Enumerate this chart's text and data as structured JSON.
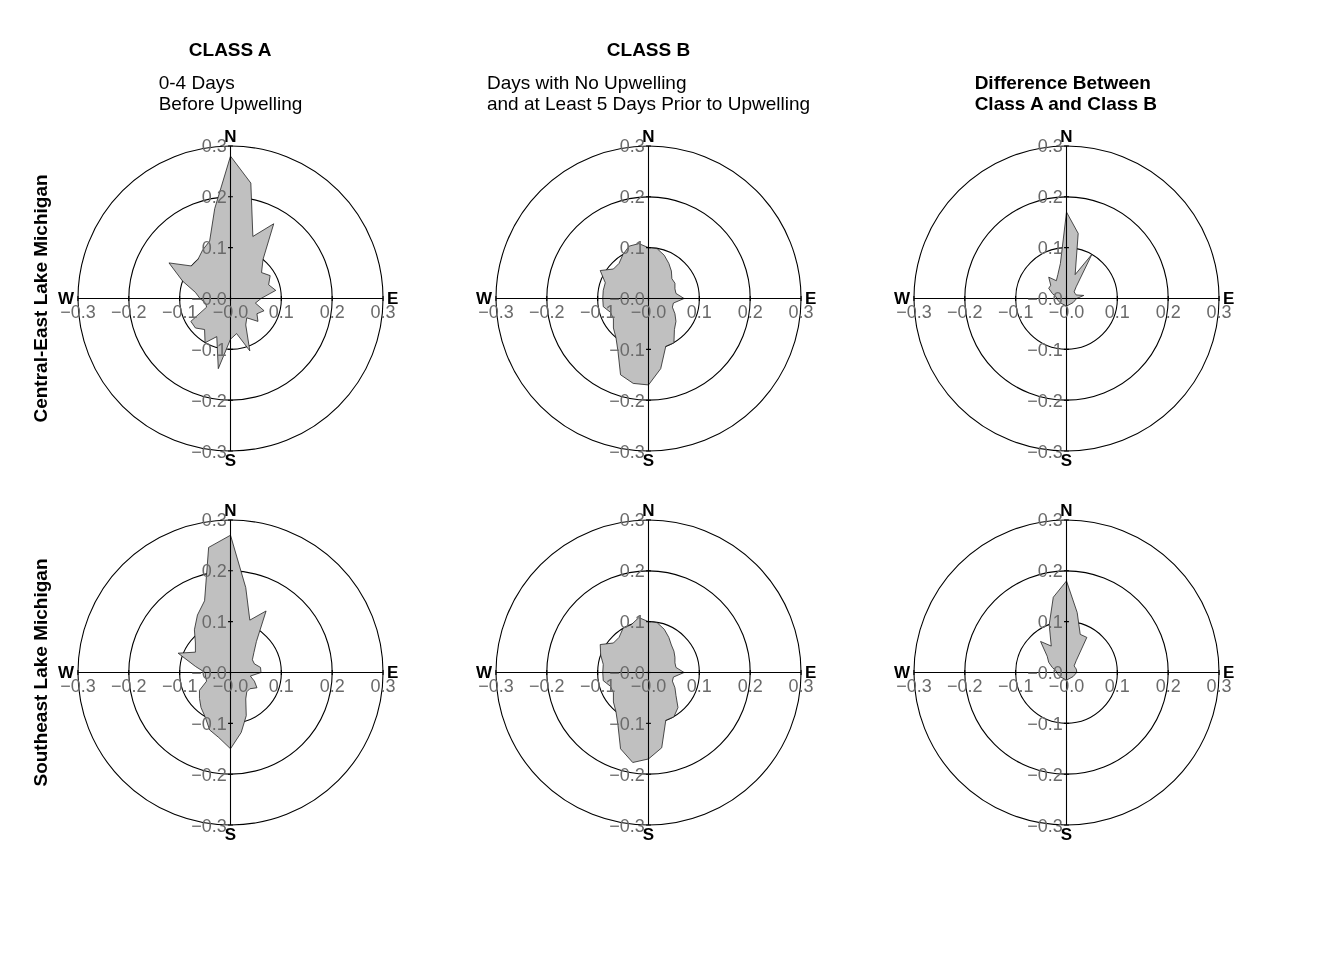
{
  "chart_data": [
    {
      "type": "area",
      "title": "CLASS A",
      "subtitle": "0-4 Days\nBefore Upwelling",
      "ylabel": "Central-East Lake Michigan",
      "xlim": [
        -0.3,
        0.3
      ],
      "ylim": [
        -0.3,
        0.3
      ],
      "xticks": [
        {
          "value": -0.3,
          "label": "−0.3"
        },
        {
          "value": -0.2,
          "label": "−0.2"
        },
        {
          "value": -0.1,
          "label": "−0.1"
        },
        {
          "value": 0,
          "label": "−0.0"
        },
        0.1,
        0.2,
        0.3
      ],
      "yticks": [
        {
          "value": -0.3,
          "label": "−0.3"
        },
        {
          "value": -0.2,
          "label": "−0.2"
        },
        {
          "value": -0.1,
          "label": "−0.1"
        },
        {
          "value": 0,
          "label": "−0.0"
        },
        0.1,
        0.2,
        0.3
      ],
      "annotations": [
        "N",
        "E",
        "S",
        "W"
      ],
      "series": [
        {
          "color": "#c0c0c0",
          "x": [
            0,
            0.04,
            0.044,
            0.085,
            0.064,
            0.061,
            0.078,
            0.075,
            0.089,
            0.06,
            0.049,
            0.066,
            0.052,
            0.054,
            0.032,
            0.03,
            0.038,
            0.012,
            0,
            -0.024,
            -0.027,
            -0.05,
            -0.051,
            -0.069,
            -0.078,
            -0.047,
            -0.049,
            -0.06,
            -0.069,
            -0.094,
            -0.121,
            -0.077,
            -0.064,
            -0.055,
            -0.041,
            -0.031
          ],
          "values": [
            0.28,
            0.227,
            0.122,
            0.147,
            0.077,
            0.051,
            0.045,
            0.027,
            0.016,
            0,
            -0.009,
            -0.024,
            -0.03,
            -0.045,
            -0.038,
            -0.052,
            -0.103,
            -0.069,
            -0.08,
            -0.138,
            -0.075,
            -0.087,
            -0.061,
            -0.058,
            -0.045,
            -0.017,
            -0.009,
            0,
            0.012,
            0.034,
            0.07,
            0.064,
            0.077,
            0.095,
            0.113,
            0.177
          ]
        }
      ]
    },
    {
      "type": "area",
      "title": "CLASS B",
      "subtitle": "Days with No Upwelling\nand at Least 5 Days Prior to Upwelling",
      "xlim": [
        -0.3,
        0.3
      ],
      "ylim": [
        -0.3,
        0.3
      ],
      "xticks": [
        {
          "value": -0.3,
          "label": "−0.3"
        },
        {
          "value": -0.2,
          "label": "−0.2"
        },
        {
          "value": -0.1,
          "label": "−0.1"
        },
        {
          "value": 0,
          "label": "−0.0"
        },
        0.1,
        0.2,
        0.3
      ],
      "yticks": [
        {
          "value": -0.3,
          "label": "−0.3"
        },
        {
          "value": -0.2,
          "label": "−0.2"
        },
        {
          "value": -0.1,
          "label": "−0.1"
        },
        {
          "value": 0,
          "label": "−0.0"
        },
        0.1,
        0.2,
        0.3
      ],
      "annotations": [
        "N",
        "E",
        "S",
        "W"
      ],
      "series": [
        {
          "color": "#c0c0c0",
          "x": [
            0,
            0.017,
            0.031,
            0.04,
            0.045,
            0.046,
            0.052,
            0.052,
            0.054,
            0.07,
            0.049,
            0.047,
            0.052,
            0.054,
            0.051,
            0.05,
            0.034,
            0.024,
            0,
            -0.03,
            -0.055,
            -0.06,
            -0.064,
            -0.069,
            -0.069,
            -0.075,
            -0.089,
            -0.09,
            -0.089,
            -0.085,
            -0.095,
            -0.069,
            -0.058,
            -0.05,
            -0.038,
            -0.019
          ],
          "values": [
            0.1,
            0.098,
            0.085,
            0.069,
            0.054,
            0.039,
            0.03,
            0.019,
            0.01,
            0,
            -0.009,
            -0.017,
            -0.03,
            -0.045,
            -0.061,
            -0.087,
            -0.094,
            -0.138,
            -0.17,
            -0.167,
            -0.15,
            -0.104,
            -0.077,
            -0.058,
            -0.04,
            -0.027,
            -0.016,
            0,
            0.016,
            0.031,
            0.055,
            0.058,
            0.069,
            0.087,
            0.103,
            0.108
          ]
        }
      ]
    },
    {
      "type": "area",
      "title": "Difference Between\nClass A and Class B",
      "xlim": [
        -0.3,
        0.3
      ],
      "ylim": [
        -0.3,
        0.3
      ],
      "xticks": [
        {
          "value": -0.3,
          "label": "−0.3"
        },
        {
          "value": -0.2,
          "label": "−0.2"
        },
        {
          "value": -0.1,
          "label": "−0.1"
        },
        {
          "value": 0,
          "label": "−0.0"
        },
        0.1,
        0.2,
        0.3
      ],
      "yticks": [
        {
          "value": -0.3,
          "label": "−0.3"
        },
        {
          "value": -0.2,
          "label": "−0.2"
        },
        {
          "value": -0.1,
          "label": "−0.1"
        },
        {
          "value": 0,
          "label": "−0.0"
        },
        0.1,
        0.2,
        0.3
      ],
      "annotations": [
        "N",
        "E",
        "S",
        "W"
      ],
      "series": [
        {
          "color": "#c0c0c0",
          "x": [
            0,
            0.023,
            0.017,
            0.05,
            0.019,
            0.015,
            0.017,
            0.019,
            0.034,
            0.02,
            0.013,
            0,
            -0.013,
            -0.02,
            -0.02,
            -0.028,
            -0.035,
            -0.031,
            -0.035,
            -0.02,
            -0.017,
            -0.012
          ],
          "values": [
            0.17,
            0.128,
            0.047,
            0.087,
            0.023,
            0.013,
            0.01,
            0.007,
            0.006,
            0,
            -0.008,
            -0.015,
            -0.008,
            0,
            0.003,
            0.01,
            0.02,
            0.026,
            0.042,
            0.035,
            0.047,
            0.069
          ]
        }
      ]
    },
    {
      "type": "area",
      "ylabel": "Southeast Lake Michigan",
      "xlim": [
        -0.3,
        0.3
      ],
      "ylim": [
        -0.3,
        0.3
      ],
      "xticks": [
        {
          "value": -0.3,
          "label": "−0.3"
        },
        {
          "value": -0.2,
          "label": "−0.2"
        },
        {
          "value": -0.1,
          "label": "−0.1"
        },
        {
          "value": 0,
          "label": "−0.0"
        },
        0.1,
        0.2,
        0.3
      ],
      "yticks": [
        {
          "value": -0.3,
          "label": "−0.3"
        },
        {
          "value": -0.2,
          "label": "−0.2"
        },
        {
          "value": -0.1,
          "label": "−0.1"
        },
        {
          "value": 0,
          "label": "−0.0"
        },
        0.1,
        0.2,
        0.3
      ],
      "annotations": [
        "N",
        "E",
        "S",
        "W"
      ],
      "series": [
        {
          "color": "#c0c0c0",
          "x": [
            0,
            0.03,
            0.038,
            0.07,
            0.051,
            0.046,
            0.043,
            0.047,
            0.059,
            0.06,
            0.039,
            0.047,
            0.052,
            0.038,
            0.032,
            0.03,
            0.031,
            0.021,
            0,
            -0.023,
            -0.041,
            -0.05,
            -0.058,
            -0.061,
            -0.061,
            -0.047,
            -0.049,
            -0.05,
            -0.069,
            -0.103,
            -0.069,
            -0.069,
            -0.071,
            -0.065,
            -0.051,
            -0.043
          ],
          "values": [
            0.27,
            0.167,
            0.103,
            0.121,
            0.061,
            0.039,
            0.025,
            0.017,
            0.01,
            0,
            -0.007,
            -0.017,
            -0.03,
            -0.032,
            -0.038,
            -0.052,
            -0.085,
            -0.118,
            -0.15,
            -0.128,
            -0.113,
            -0.087,
            -0.069,
            -0.051,
            -0.035,
            -0.017,
            -0.009,
            0,
            0.012,
            0.038,
            0.04,
            0.058,
            0.084,
            0.113,
            0.141,
            0.246
          ]
        }
      ]
    },
    {
      "type": "area",
      "xlim": [
        -0.3,
        0.3
      ],
      "ylim": [
        -0.3,
        0.3
      ],
      "xticks": [
        {
          "value": -0.3,
          "label": "−0.3"
        },
        {
          "value": -0.2,
          "label": "−0.2"
        },
        {
          "value": -0.1,
          "label": "−0.1"
        },
        {
          "value": 0,
          "label": "−0.0"
        },
        0.1,
        0.2,
        0.3
      ],
      "yticks": [
        {
          "value": -0.3,
          "label": "−0.3"
        },
        {
          "value": -0.2,
          "label": "−0.2"
        },
        {
          "value": -0.1,
          "label": "−0.1"
        },
        {
          "value": 0,
          "label": "−0.0"
        },
        0.1,
        0.2,
        0.3
      ],
      "annotations": [
        "N",
        "E",
        "S",
        "W"
      ],
      "series": [
        {
          "color": "#c0c0c0",
          "x": [
            0,
            0.017,
            0.031,
            0.04,
            0.045,
            0.05,
            0.052,
            0.052,
            0.054,
            0.07,
            0.049,
            0.047,
            0.052,
            0.054,
            0.058,
            0.05,
            0.034,
            0.026,
            0,
            -0.031,
            -0.055,
            -0.06,
            -0.064,
            -0.069,
            -0.069,
            -0.075,
            -0.089,
            -0.09,
            -0.089,
            -0.094,
            -0.095,
            -0.069,
            -0.058,
            -0.05,
            -0.034,
            -0.019
          ],
          "values": [
            0.1,
            0.098,
            0.085,
            0.069,
            0.054,
            0.042,
            0.03,
            0.019,
            0.01,
            0,
            -0.009,
            -0.017,
            -0.03,
            -0.045,
            -0.069,
            -0.087,
            -0.094,
            -0.148,
            -0.17,
            -0.177,
            -0.15,
            -0.104,
            -0.077,
            -0.058,
            -0.04,
            -0.027,
            -0.016,
            0,
            0.016,
            0.034,
            0.055,
            0.058,
            0.069,
            0.087,
            0.094,
            0.108
          ]
        }
      ]
    },
    {
      "type": "area",
      "xlim": [
        -0.3,
        0.3
      ],
      "ylim": [
        -0.3,
        0.3
      ],
      "xticks": [
        {
          "value": -0.3,
          "label": "−0.3"
        },
        {
          "value": -0.2,
          "label": "−0.2"
        },
        {
          "value": -0.1,
          "label": "−0.1"
        },
        {
          "value": 0,
          "label": "−0.0"
        },
        0.1,
        0.2,
        0.3
      ],
      "yticks": [
        {
          "value": -0.3,
          "label": "−0.3"
        },
        {
          "value": -0.2,
          "label": "−0.2"
        },
        {
          "value": -0.1,
          "label": "−0.1"
        },
        {
          "value": 0,
          "label": "−0.0"
        },
        0.1,
        0.2,
        0.3
      ],
      "annotations": [
        "N",
        "E",
        "S",
        "W"
      ],
      "series": [
        {
          "color": "#c0c0c0",
          "x": [
            0,
            0.021,
            0.027,
            0.04,
            0.019,
            0.015,
            0.017,
            0.019,
            0.02,
            0.02,
            0.013,
            0,
            -0.013,
            -0.02,
            -0.02,
            -0.028,
            -0.035,
            -0.038,
            -0.051,
            -0.03,
            -0.034,
            -0.026
          ],
          "values": [
            0.18,
            0.118,
            0.075,
            0.069,
            0.023,
            0.013,
            0.01,
            0.007,
            0.003,
            0,
            -0.008,
            -0.015,
            -0.008,
            0,
            0.003,
            0.01,
            0.02,
            0.032,
            0.061,
            0.052,
            0.094,
            0.148
          ]
        }
      ]
    }
  ]
}
